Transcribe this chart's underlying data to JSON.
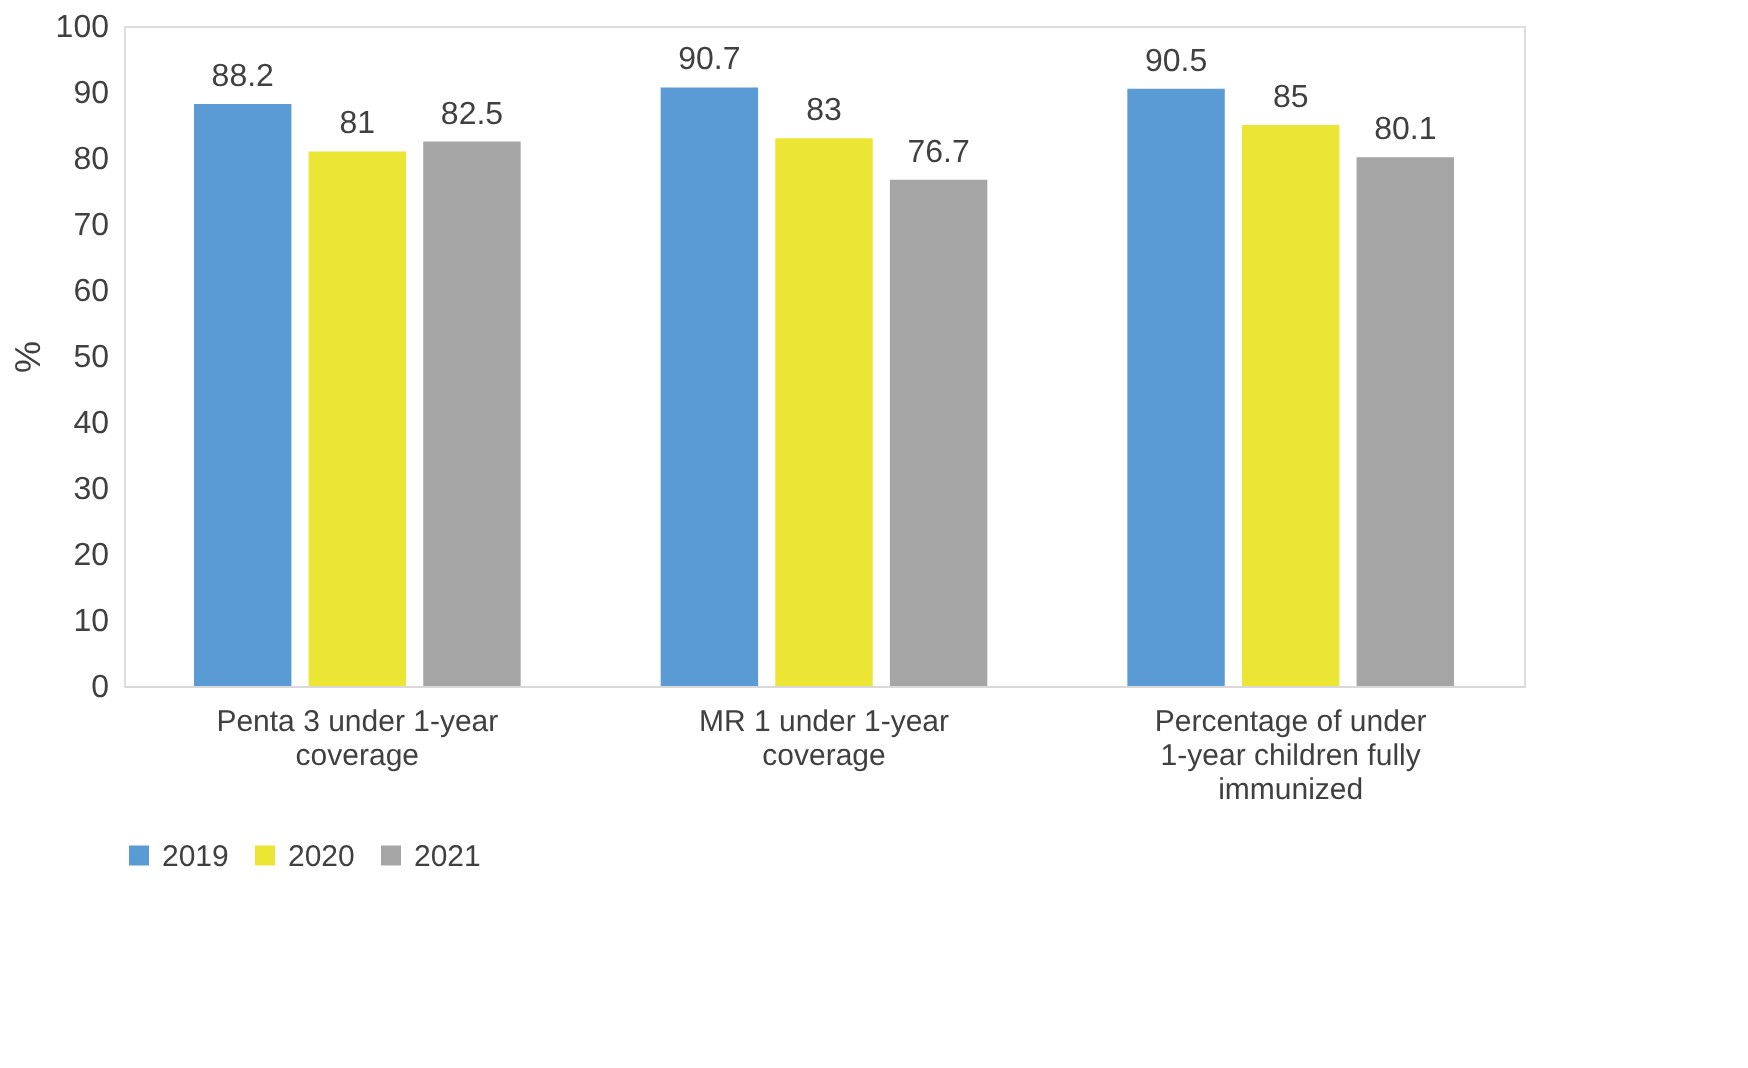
{
  "chart_data": {
    "type": "bar",
    "ylabel": "%",
    "categories": [
      "Penta 3 under 1-year coverage",
      "MR 1 under 1-year coverage",
      "Percentage of under 1-year children fully immunized"
    ],
    "series": [
      {
        "name": "2019",
        "color": "#5b9bd5",
        "values": [
          88.2,
          90.7,
          90.5
        ]
      },
      {
        "name": "2020",
        "color": "#ebe534",
        "values": [
          81,
          83,
          85
        ]
      },
      {
        "name": "2021",
        "color": "#a5a5a5",
        "values": [
          82.5,
          76.7,
          80.1
        ]
      }
    ],
    "ylim": [
      0,
      100
    ],
    "yticks": [
      0,
      10,
      20,
      30,
      40,
      50,
      60,
      70,
      80,
      90,
      100
    ],
    "grid": false,
    "legend": "bottom",
    "data_labels": true
  }
}
